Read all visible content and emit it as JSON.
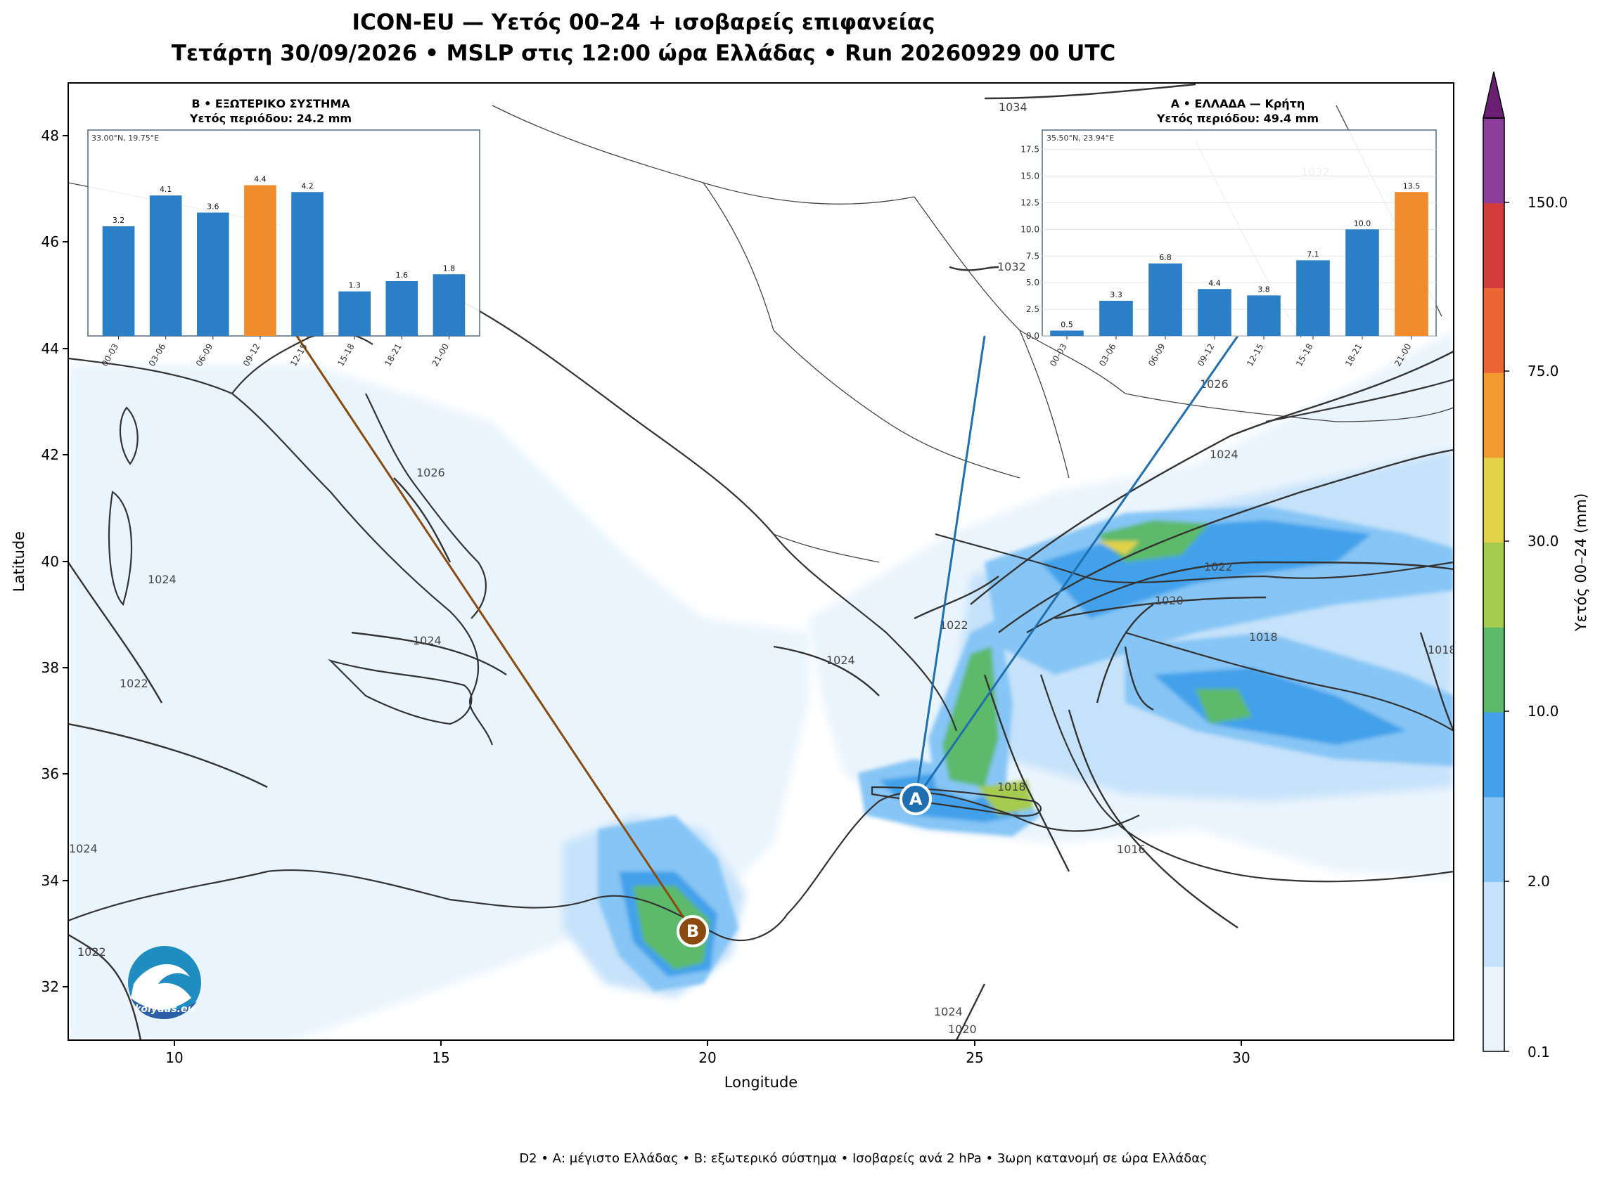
{
  "title": {
    "line1": "ICON-EU — Υετός 00–24 + ισοβαρείς επιφανείας",
    "line2": "Τετάρτη 30/09/2026 • MSLP στις 12:00 ώρα Ελλάδας • Run 20260929 00 UTC"
  },
  "axes": {
    "xlabel": "Longitude",
    "ylabel": "Latitude",
    "xticks": [
      "10",
      "15",
      "20",
      "25",
      "30"
    ],
    "yticks": [
      "32",
      "34",
      "36",
      "38",
      "40",
      "42",
      "44",
      "46",
      "48"
    ]
  },
  "colorbar": {
    "label": "Υετός 00–24 (mm)",
    "ticks": [
      "0.1",
      "2.0",
      "10.0",
      "30.0",
      "75.0",
      "150.0"
    ],
    "colors": [
      "#eaf4fd",
      "#c6e2fa",
      "#86c5f5",
      "#42a1ea",
      "#5cba6a",
      "#a5cb4f",
      "#e2d24a",
      "#f39a2f",
      "#ea6532",
      "#d43b3b",
      "#8b3e9c",
      "#6a1f73"
    ]
  },
  "isobar_labels": [
    "1034",
    "1032",
    "1032",
    "1026",
    "1026",
    "1024",
    "1024",
    "1024",
    "1024",
    "1024",
    "1022",
    "1022",
    "1022",
    "1022",
    "1020",
    "1018",
    "1018",
    "1018",
    "1016",
    "1024",
    "1020"
  ],
  "markers": {
    "A": {
      "label": "A",
      "color": "#1f6fb0"
    },
    "B": {
      "label": "B",
      "color": "#8a4a10"
    }
  },
  "logo": {
    "text": "kolydas.eu"
  },
  "footer": "D2 • Α: μέγιστο Ελλάδας • Β: εξωτερικό σύστημα • Ισοβαρείς ανά 2 hPa • 3ωρη κατανομή σε ώρα Ελλάδας",
  "chart_data": [
    {
      "type": "bar",
      "title": "B • ΕΞΩΤΕΡΙΚΟ ΣΥΣΤΗΜΑ",
      "subtitle": "Υετός περιόδου: 24.2 mm",
      "coord_label": "33.00°N, 19.75°E",
      "categories": [
        "00-03",
        "03-06",
        "06-09",
        "09-12",
        "12-15",
        "15-18",
        "18-21",
        "21-00"
      ],
      "values": [
        3.2,
        4.1,
        3.6,
        4.4,
        4.2,
        1.3,
        1.6,
        1.8
      ],
      "value_labels": [
        "3.2",
        "4.1",
        "3.6",
        "4.4",
        "4.2",
        "1.3",
        "1.6",
        "1.8"
      ],
      "highlight_index": 3,
      "ylim": [
        0,
        5.6
      ],
      "yticks": [],
      "bar_color": "#2a7fc6",
      "highlight_color": "#f08c2c"
    },
    {
      "type": "bar",
      "title": "A • ΕΛΛΑΔΑ — Κρήτη",
      "subtitle": "Υετός περιόδου: 49.4 mm",
      "coord_label": "35.50°N, 23.94°E",
      "categories": [
        "00-03",
        "03-06",
        "06-09",
        "09-12",
        "12-15",
        "15-18",
        "18-21",
        "21-00"
      ],
      "values": [
        0.5,
        3.3,
        6.8,
        4.4,
        3.8,
        7.1,
        10.0,
        13.5
      ],
      "value_labels": [
        "0.5",
        "3.3",
        "6.8",
        "4.4",
        "3.8",
        "7.1",
        "10.0",
        "13.5"
      ],
      "highlight_index": 7,
      "ylim": [
        0,
        18
      ],
      "yticks": [
        "0.0",
        "2.5",
        "5.0",
        "7.5",
        "10.0",
        "12.5",
        "15.0",
        "17.5"
      ],
      "bar_color": "#2a7fc6",
      "highlight_color": "#f08c2c"
    }
  ]
}
